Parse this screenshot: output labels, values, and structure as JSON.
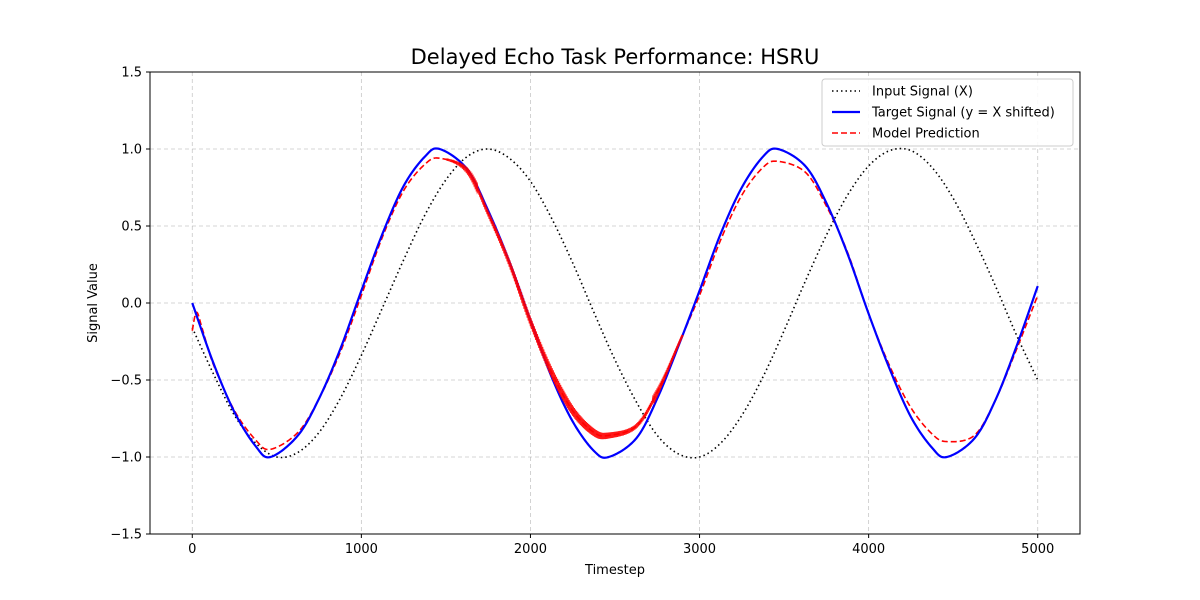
{
  "chart_data": {
    "type": "line",
    "title": "Delayed Echo Task Performance: HSRU",
    "xlabel": "Timestep",
    "ylabel": "Signal Value",
    "xlim": [
      -250,
      5250
    ],
    "ylim": [
      -1.5,
      1.5
    ],
    "xticks": [
      0,
      1000,
      2000,
      3000,
      4000,
      5000
    ],
    "yticks": [
      -1.5,
      -1.0,
      -0.5,
      0.0,
      0.5,
      1.0,
      1.5
    ],
    "xtick_labels": [
      "0",
      "1000",
      "2000",
      "3000",
      "4000",
      "5000"
    ],
    "ytick_labels": [
      "−1.5",
      "−1.0",
      "−0.5",
      "0.0",
      "0.5",
      "1.0",
      "1.5"
    ],
    "grid": true,
    "legend_position": "top-right",
    "series": [
      {
        "name": "Input Signal (X)",
        "style": "dotted",
        "color": "#000000",
        "x": [
          0,
          125,
          250,
          375,
          500,
          625,
          750,
          875,
          1000,
          1125,
          1250,
          1375,
          1500,
          1625,
          1750,
          1875,
          2000,
          2125,
          2250,
          2375,
          2500,
          2625,
          2750,
          2875,
          3000,
          3125,
          3250,
          3375,
          3500,
          3625,
          3750,
          3875,
          4000,
          4125,
          4250,
          4375,
          4500,
          4625,
          4750,
          4875,
          5000
        ],
        "y": [
          -0.16,
          -0.46,
          -0.73,
          -0.91,
          -1.0,
          -0.97,
          -0.84,
          -0.62,
          -0.34,
          -0.03,
          0.28,
          0.57,
          0.8,
          0.95,
          1.0,
          0.94,
          0.79,
          0.55,
          0.26,
          -0.06,
          -0.37,
          -0.64,
          -0.86,
          -0.98,
          -1.0,
          -0.91,
          -0.73,
          -0.48,
          -0.18,
          0.14,
          0.44,
          0.7,
          0.89,
          0.99,
          0.99,
          0.88,
          0.68,
          0.41,
          0.11,
          -0.21,
          -0.5
        ]
      },
      {
        "name": "Target Signal (y = X shifted)",
        "style": "solid",
        "color": "#0000ff",
        "x": [
          0,
          125,
          250,
          375,
          463,
          625,
          750,
          875,
          1000,
          1125,
          1250,
          1375,
          1463,
          1625,
          1750,
          1875,
          2000,
          2125,
          2250,
          2375,
          2463,
          2625,
          2750,
          2875,
          3000,
          3125,
          3250,
          3375,
          3463,
          3625,
          3750,
          3875,
          4000,
          4125,
          4250,
          4375,
          4463,
          4625,
          4750,
          4875,
          5000
        ],
        "y": [
          0.0,
          -0.39,
          -0.71,
          -0.93,
          -1.0,
          -0.86,
          -0.62,
          -0.3,
          0.08,
          0.45,
          0.76,
          0.95,
          1.0,
          0.87,
          0.6,
          0.27,
          -0.11,
          -0.48,
          -0.77,
          -0.96,
          -1.0,
          -0.88,
          -0.62,
          -0.28,
          0.08,
          0.45,
          0.75,
          0.95,
          1.0,
          0.89,
          0.65,
          0.32,
          -0.07,
          -0.43,
          -0.74,
          -0.94,
          -1.0,
          -0.88,
          -0.63,
          -0.28,
          0.11
        ]
      },
      {
        "name": "Model Prediction",
        "style": "dashed",
        "color": "#ff0000",
        "x": [
          0,
          25,
          60,
          125,
          250,
          375,
          463,
          625,
          750,
          875,
          1000,
          1125,
          1250,
          1375,
          1463,
          1625,
          1750,
          1875,
          2000,
          2125,
          2250,
          2375,
          2463,
          2625,
          2750,
          2875,
          3000,
          3125,
          3250,
          3375,
          3463,
          3625,
          3750,
          3875,
          4000,
          4125,
          4250,
          4375,
          4463,
          4625,
          4750,
          4875,
          5000
        ],
        "y": [
          -0.18,
          -0.06,
          -0.17,
          -0.4,
          -0.7,
          -0.89,
          -0.95,
          -0.84,
          -0.62,
          -0.32,
          0.05,
          0.43,
          0.73,
          0.9,
          0.94,
          0.86,
          0.58,
          0.26,
          -0.12,
          -0.45,
          -0.7,
          -0.84,
          -0.86,
          -0.8,
          -0.58,
          -0.27,
          0.05,
          0.41,
          0.7,
          0.88,
          0.92,
          0.85,
          0.63,
          0.33,
          -0.07,
          -0.41,
          -0.68,
          -0.85,
          -0.9,
          -0.86,
          -0.63,
          -0.3,
          0.05
        ]
      }
    ],
    "oscillation_band": {
      "series": "Model Prediction",
      "x_range": [
        1500,
        2900
      ],
      "amplitude": 0.03
    }
  }
}
